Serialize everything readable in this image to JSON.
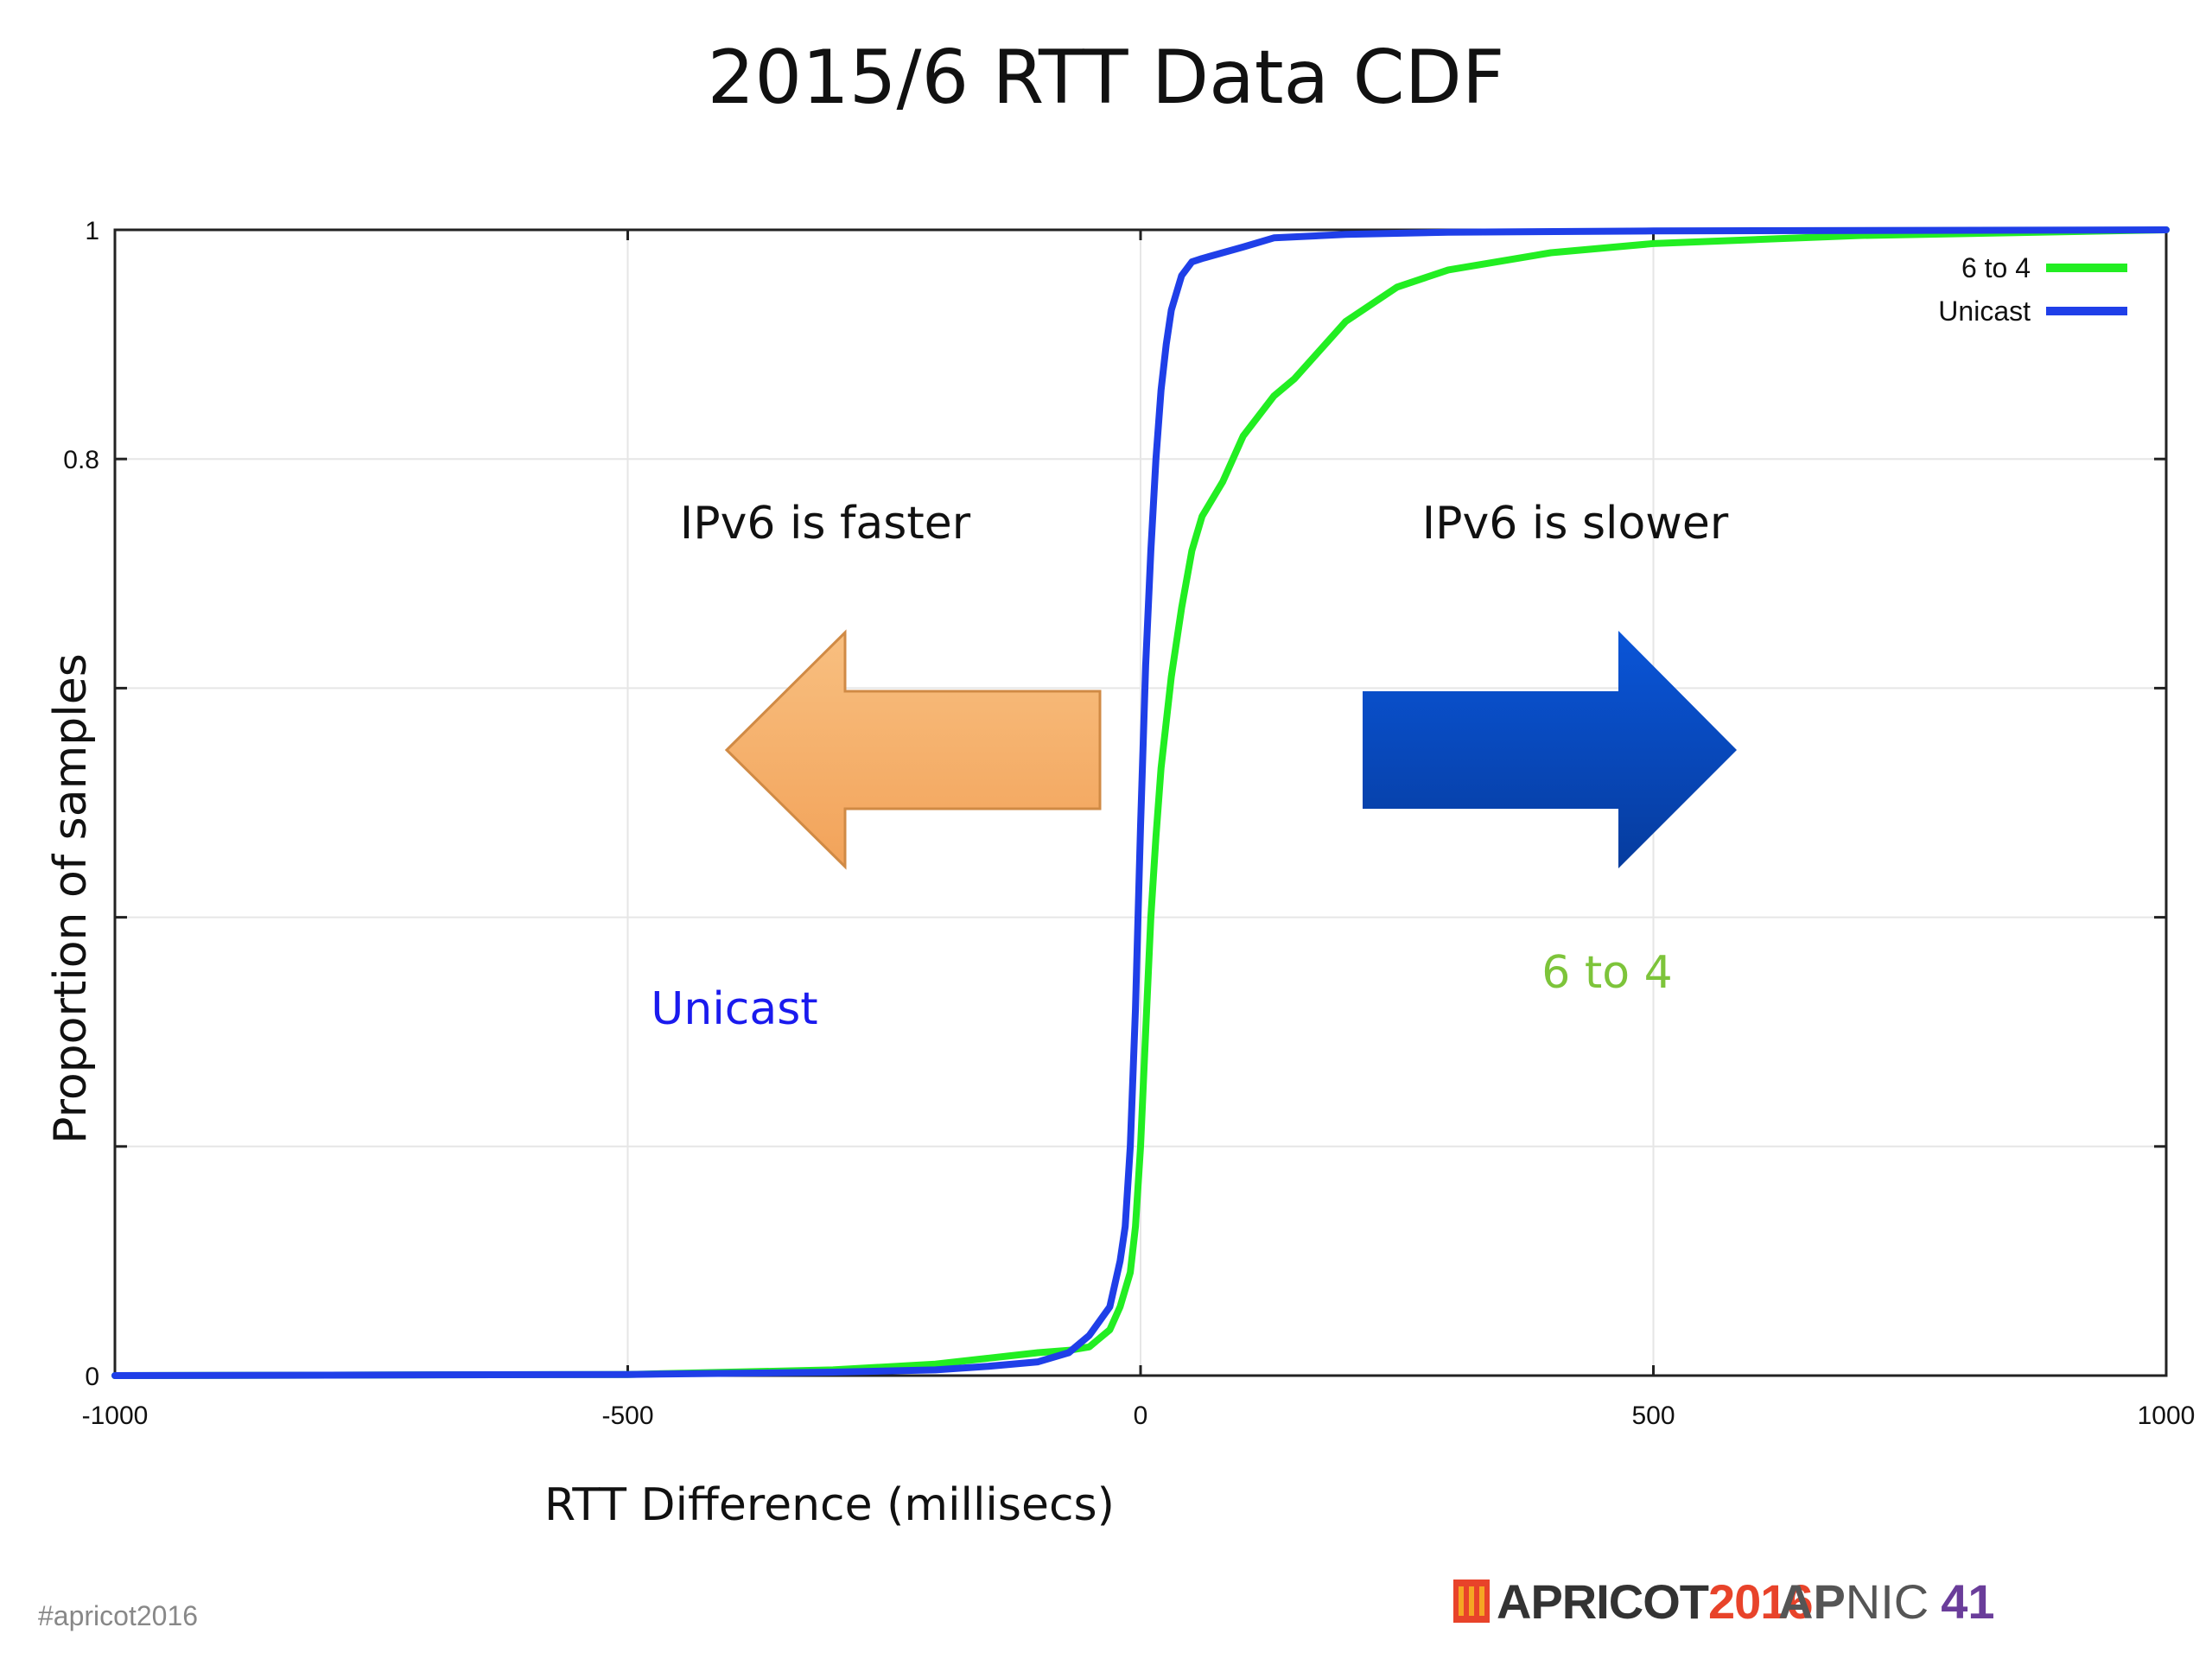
{
  "slide": {
    "title": "2015/6 RTT Data CDF",
    "hashtag": "#apricot2016",
    "logos": {
      "apricot_text": "APRICOT",
      "apricot_year": "2016",
      "apnic_ap": "AP",
      "apnic_nic": "NIC",
      "apnic_num": "41"
    }
  },
  "annotations": {
    "faster": "IPv6 is faster",
    "slower": "IPv6 is slower",
    "unicast": "Unicast",
    "six_to_four": "6 to 4"
  },
  "colors": {
    "six_to_four": "#22ee22",
    "unicast": "#1f3fe8",
    "unicast_label": "#1a1aee",
    "six_to_four_label": "#7dc43a",
    "arrow_left": "#f6b06a",
    "arrow_right": "#0a4bc4"
  },
  "chart_data": {
    "type": "line",
    "xlabel": "RTT Difference (millisecs)",
    "ylabel": "Proportion of samples",
    "xlim": [
      -1000,
      1000
    ],
    "ylim": [
      0,
      1
    ],
    "x_ticks": [
      -1000,
      -500,
      0,
      500,
      1000
    ],
    "x_tick_labels": [
      "-1000",
      "-500",
      "0",
      "500",
      "1000"
    ],
    "y_ticks": [
      0,
      0.2,
      0.4,
      0.6,
      0.8,
      1
    ],
    "y_tick_labels": [
      "0",
      "",
      "",
      "",
      "0.8",
      "1"
    ],
    "grid": true,
    "legend_position": "top-right",
    "series": [
      {
        "name": "6 to 4",
        "x": [
          -1000,
          -500,
          -300,
          -200,
          -150,
          -100,
          -70,
          -50,
          -30,
          -20,
          -10,
          -5,
          0,
          5,
          10,
          15,
          20,
          30,
          40,
          50,
          60,
          80,
          100,
          130,
          150,
          200,
          250,
          300,
          400,
          500,
          700,
          1000
        ],
        "y": [
          0,
          0.001,
          0.005,
          0.01,
          0.015,
          0.02,
          0.022,
          0.025,
          0.04,
          0.06,
          0.09,
          0.13,
          0.2,
          0.3,
          0.4,
          0.47,
          0.53,
          0.61,
          0.67,
          0.72,
          0.75,
          0.78,
          0.82,
          0.855,
          0.87,
          0.92,
          0.95,
          0.965,
          0.98,
          0.988,
          0.995,
          1.0
        ]
      },
      {
        "name": "Unicast",
        "x": [
          -1000,
          -500,
          -300,
          -200,
          -150,
          -100,
          -70,
          -50,
          -30,
          -20,
          -15,
          -10,
          -5,
          0,
          5,
          10,
          15,
          20,
          25,
          30,
          40,
          50,
          60,
          80,
          100,
          130,
          200,
          300,
          500,
          1000
        ],
        "y": [
          0,
          0.001,
          0.003,
          0.005,
          0.008,
          0.012,
          0.02,
          0.035,
          0.06,
          0.1,
          0.13,
          0.2,
          0.32,
          0.48,
          0.62,
          0.72,
          0.8,
          0.86,
          0.9,
          0.93,
          0.96,
          0.972,
          0.975,
          0.98,
          0.985,
          0.993,
          0.996,
          0.998,
          0.999,
          1.0
        ]
      }
    ]
  }
}
